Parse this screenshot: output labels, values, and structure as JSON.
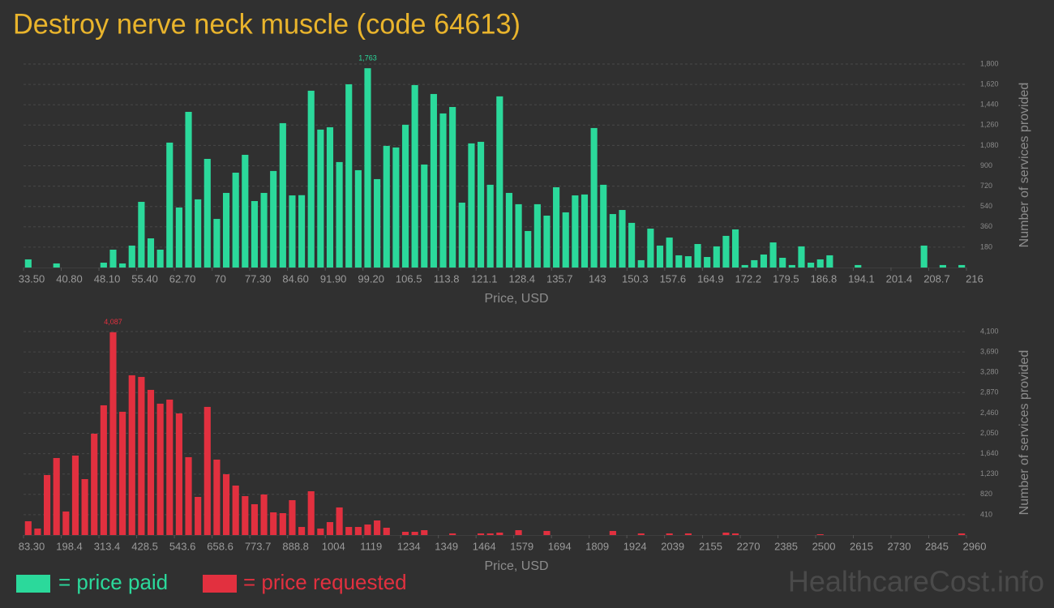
{
  "title": "Destroy nerve neck muscle (code 64613)",
  "watermark": "HealthcareCost.info",
  "chart_data": [
    {
      "type": "histogram",
      "xlabel": "Price, USD",
      "ylabel": "Number of services provided",
      "peak_label": "1,763",
      "bins": [
        33.5,
        35.325,
        37.15,
        38.975,
        40.8,
        42.625,
        44.45,
        46.275,
        48.1,
        49.925,
        51.75,
        53.575,
        55.4,
        57.225,
        59.05,
        60.875,
        62.7,
        64.525,
        66.35,
        68.175,
        70,
        71.825,
        73.65,
        75.475,
        77.3,
        79.125,
        80.95,
        82.775,
        84.6,
        86.425,
        88.25,
        90.075,
        91.9,
        93.725,
        95.55,
        97.375,
        99.2,
        101.025,
        102.85,
        104.675,
        106.5,
        108.325,
        110.15,
        111.975,
        113.8,
        115.625,
        117.45,
        119.275,
        121.1,
        122.925,
        124.75,
        126.575,
        128.4,
        130.225,
        132.05,
        133.875,
        135.7,
        137.525,
        139.35,
        141.175,
        143,
        144.825,
        146.65,
        148.475,
        150.3,
        152.125,
        153.95,
        155.775,
        157.6,
        159.425,
        161.25,
        163.075,
        164.9,
        166.725,
        168.55,
        170.375,
        172.2,
        174.025,
        175.85,
        177.675,
        179.5,
        181.325,
        183.15,
        184.975,
        186.8,
        188.625,
        190.45,
        192.275,
        194.1,
        195.925,
        197.75,
        199.575,
        201.4,
        203.225,
        205.05,
        206.875,
        208.7,
        210.525,
        212.35,
        214.175,
        216
      ],
      "series": [
        {
          "name": "= price paid",
          "color": "#2bd99b",
          "values": [
            72,
            0,
            0,
            36,
            0,
            0,
            0,
            0,
            43,
            158,
            36,
            194,
            581,
            258,
            158,
            1105,
            531,
            1377,
            603,
            961,
            430,
            660,
            839,
            997,
            588,
            660,
            854,
            1277,
            638,
            640,
            1564,
            1220,
            1241,
            933,
            1621,
            861,
            1763,
            782,
            1076,
            1062,
            1263,
            1614,
            911,
            1535,
            1363,
            1420,
            574,
            1098,
            1112,
            732,
            1514,
            660,
            560,
            323,
            560,
            459,
            710,
            488,
            638,
            646,
            1234,
            732,
            473,
            509,
            395,
            65,
            344,
            194,
            265,
            108,
            100,
            208,
            93,
            187,
            280,
            337,
            22,
            65,
            115,
            222,
            86,
            22,
            187,
            43,
            72,
            108,
            0,
            0,
            22,
            0,
            0,
            0,
            0,
            0,
            0,
            194,
            0,
            22,
            0,
            22
          ]
        }
      ],
      "xlim": [
        33.5,
        216
      ],
      "xticks": [
        {
          "value": 33.5,
          "label": "33.50"
        },
        {
          "value": 40.8,
          "label": "40.80"
        },
        {
          "value": 48.1,
          "label": "48.10"
        },
        {
          "value": 55.4,
          "label": "55.40"
        },
        {
          "value": 62.7,
          "label": "62.70"
        },
        70,
        {
          "value": 77.3,
          "label": "77.30"
        },
        {
          "value": 84.6,
          "label": "84.60"
        },
        {
          "value": 91.9,
          "label": "91.90"
        },
        {
          "value": 99.2,
          "label": "99.20"
        },
        106.5,
        113.8,
        121.1,
        128.4,
        135.7,
        143,
        150.3,
        157.6,
        164.9,
        172.2,
        179.5,
        186.8,
        194.1,
        201.4,
        208.7,
        216
      ],
      "ylim": [
        0,
        1800
      ],
      "yticks": [
        180,
        360,
        540,
        720,
        900,
        {
          "value": 1080,
          "label": "1,080"
        },
        {
          "value": 1260,
          "label": "1,260"
        },
        {
          "value": 1440,
          "label": "1,440"
        },
        {
          "value": 1620,
          "label": "1,620"
        },
        {
          "value": 1800,
          "label": "1,800"
        }
      ],
      "grid": true
    },
    {
      "type": "histogram",
      "xlabel": "Price, USD",
      "ylabel": "Number of services provided",
      "peak_label": "4,087",
      "bins": [
        83.3,
        112.067,
        140.834,
        169.601,
        198.368,
        227.135,
        255.902,
        284.669,
        313.436,
        342.203,
        370.97,
        399.737,
        428.504,
        457.271,
        486.038,
        514.805,
        543.572,
        572.339,
        601.106,
        629.873,
        658.64,
        687.407,
        716.174,
        744.941,
        773.708,
        802.475,
        831.242,
        860.009,
        888.776,
        917.543,
        946.31,
        975.077,
        1003.844,
        1032.611,
        1061.378,
        1090.145,
        1118.912,
        1147.679,
        1176.446,
        1205.213,
        1233.98,
        1262.747,
        1291.514,
        1320.281,
        1349.048,
        1377.815,
        1406.582,
        1435.349,
        1464.116,
        1492.883,
        1521.65,
        1550.417,
        1579.184,
        1607.951,
        1636.718,
        1665.485,
        1694.252,
        1723.019,
        1751.786,
        1780.553,
        1809.32,
        1838.087,
        1866.854,
        1895.621,
        1924.388,
        1953.155,
        1981.922,
        2010.689,
        2039.456,
        2068.223,
        2096.99,
        2125.757,
        2154.524,
        2183.291,
        2212.058,
        2240.825,
        2269.592,
        2298.359,
        2327.126,
        2355.893,
        2384.66,
        2413.427,
        2442.194,
        2470.961,
        2499.728,
        2528.495,
        2557.262,
        2586.029,
        2614.796,
        2643.563,
        2672.33,
        2701.097,
        2729.864,
        2758.631,
        2787.398,
        2816.165,
        2844.932,
        2873.699,
        2902.466,
        2931.233,
        2960
      ],
      "series": [
        {
          "name": "= price requested",
          "color": "#e2303f",
          "values": [
            278,
            131,
            1209,
            1552,
            474,
            1601,
            1127,
            2042,
            2614,
            4087,
            2484,
            3219,
            3186,
            2925,
            2647,
            2729,
            2451,
            1569,
            768,
            2582,
            1520,
            1225,
            997,
            784,
            621,
            817,
            457,
            441,
            703,
            163,
            882,
            131,
            261,
            556,
            163,
            163,
            212,
            294,
            147,
            0,
            65,
            65,
            98,
            0,
            0,
            33,
            0,
            0,
            33,
            33,
            49,
            0,
            98,
            0,
            0,
            82,
            0,
            0,
            0,
            0,
            0,
            0,
            82,
            0,
            0,
            33,
            0,
            0,
            33,
            0,
            33,
            0,
            0,
            0,
            49,
            33,
            0,
            0,
            0,
            0,
            0,
            0,
            0,
            0,
            16,
            0,
            0,
            0,
            0,
            0,
            0,
            0,
            0,
            0,
            0,
            0,
            0,
            0,
            0,
            33
          ]
        }
      ],
      "xlim": [
        83.3,
        2960
      ],
      "xticks": [
        {
          "value": 83.3,
          "label": "83.30"
        },
        198.4,
        313.4,
        428.5,
        543.6,
        658.6,
        773.7,
        888.8,
        1004,
        1119,
        1234,
        1349,
        1464,
        1579,
        1694,
        1809,
        1924,
        2039,
        2155,
        2270,
        2385,
        2500,
        2615,
        2730,
        2845,
        2960
      ],
      "ylim": [
        0,
        4100
      ],
      "yticks": [
        410,
        820,
        {
          "value": 1230,
          "label": "1,230"
        },
        {
          "value": 1640,
          "label": "1,640"
        },
        {
          "value": 2050,
          "label": "2,050"
        },
        {
          "value": 2460,
          "label": "2,460"
        },
        {
          "value": 2870,
          "label": "2,870"
        },
        {
          "value": 3280,
          "label": "3,280"
        },
        {
          "value": 3690,
          "label": "3,690"
        },
        {
          "value": 4100,
          "label": "4,100"
        }
      ],
      "grid": true
    }
  ]
}
